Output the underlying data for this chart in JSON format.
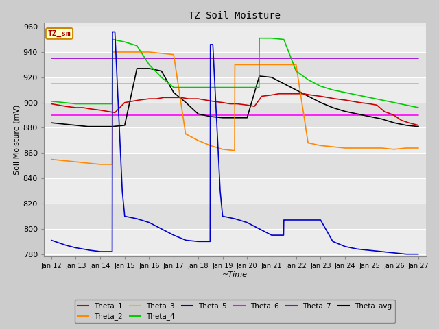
{
  "title": "TZ Soil Moisture",
  "xlabel": "~Time",
  "ylabel": "Soil Moisture (mV)",
  "ylim": [
    778,
    963
  ],
  "bg_color": "#cccccc",
  "plot_bg_light": "#e8e8e8",
  "plot_bg_dark": "#d8d8d8",
  "label_box_text": "TZ_sm",
  "label_box_color": "#ffffcc",
  "label_box_text_color": "#aa0000",
  "x_tick_labels": [
    "Jan 12",
    "Jan 13",
    "Jan 14",
    "Jan 15",
    "Jan 16",
    "Jan 17",
    "Jan 18",
    "Jan 19",
    "Jan 20",
    "Jan 21",
    "Jan 22",
    "Jan 23",
    "Jan 24",
    "Jan 25",
    "Jan 26",
    "Jan 27"
  ],
  "legend_entries": [
    {
      "label": "Theta_1",
      "color": "#cc0000"
    },
    {
      "label": "Theta_2",
      "color": "#ff8800"
    },
    {
      "label": "Theta_3",
      "color": "#cccc00"
    },
    {
      "label": "Theta_4",
      "color": "#00cc00"
    },
    {
      "label": "Theta_5",
      "color": "#0000cc"
    },
    {
      "label": "Theta_6",
      "color": "#ff00ff"
    },
    {
      "label": "Theta_7",
      "color": "#9900cc"
    },
    {
      "label": "Theta_avg",
      "color": "#000000"
    }
  ],
  "series": {
    "Theta_1": {
      "color": "#cc0000",
      "x": [
        0,
        0.3,
        0.6,
        1.0,
        1.3,
        1.6,
        2.0,
        2.3,
        2.6,
        3.0,
        3.3,
        3.6,
        4.0,
        4.3,
        4.6,
        5.0,
        5.3,
        5.6,
        6.0,
        6.3,
        6.6,
        7.0,
        7.3,
        7.6,
        8.0,
        8.3,
        8.6,
        9.0,
        9.3,
        9.6,
        10.0,
        10.3,
        10.6,
        11.0,
        11.3,
        11.6,
        12.0,
        12.3,
        12.6,
        13.0,
        13.3,
        13.6,
        14.0,
        14.3,
        14.6,
        15.0
      ],
      "y": [
        899,
        898,
        897,
        896,
        896,
        895,
        894,
        893,
        892,
        900,
        901,
        902,
        903,
        903,
        904,
        904,
        904,
        903,
        903,
        902,
        901,
        900,
        899,
        899,
        898,
        897,
        905,
        906,
        907,
        907,
        907,
        907,
        906,
        905,
        904,
        903,
        902,
        901,
        900,
        899,
        898,
        893,
        890,
        886,
        884,
        882
      ]
    },
    "Theta_2": {
      "color": "#ff8800",
      "x": [
        0,
        0.5,
        1.0,
        1.5,
        2.0,
        2.49,
        2.5,
        2.51,
        3.0,
        3.5,
        4.0,
        4.5,
        5.0,
        5.49,
        5.5,
        5.51,
        6.0,
        6.5,
        7.0,
        7.49,
        7.5,
        7.51,
        8.0,
        8.5,
        9.0,
        9.5,
        10.0,
        10.49,
        10.5,
        10.51,
        11.0,
        11.5,
        12.0,
        12.5,
        13.0,
        13.5,
        14.0,
        14.5,
        15.0
      ],
      "y": [
        855,
        854,
        853,
        852,
        851,
        851,
        940,
        940,
        940,
        940,
        940,
        939,
        938,
        875,
        875,
        875,
        870,
        866,
        863,
        862,
        930,
        930,
        930,
        930,
        930,
        930,
        930,
        868,
        868,
        868,
        866,
        865,
        864,
        864,
        864,
        864,
        863,
        864,
        864
      ]
    },
    "Theta_3": {
      "color": "#cccc00",
      "x": [
        0,
        15.0
      ],
      "y": [
        915,
        915
      ]
    },
    "Theta_4": {
      "color": "#00cc00",
      "x": [
        0,
        0.5,
        1.0,
        1.5,
        2.0,
        2.49,
        2.5,
        2.51,
        3.0,
        3.5,
        4.0,
        4.5,
        5.0,
        5.5,
        6.0,
        6.5,
        7.0,
        7.5,
        8.0,
        8.49,
        8.5,
        8.51,
        9.0,
        9.5,
        10.0,
        10.5,
        11.0,
        11.5,
        12.0,
        12.5,
        13.0,
        13.5,
        14.0,
        14.5,
        15.0
      ],
      "y": [
        901,
        900,
        899,
        899,
        899,
        899,
        950,
        950,
        948,
        945,
        930,
        920,
        912,
        912,
        912,
        912,
        912,
        912,
        912,
        912,
        951,
        951,
        951,
        950,
        925,
        918,
        913,
        910,
        908,
        906,
        904,
        902,
        900,
        898,
        896
      ]
    },
    "Theta_5": {
      "color": "#0000cc",
      "x": [
        0,
        0.3,
        0.6,
        1.0,
        1.3,
        1.6,
        2.0,
        2.3,
        2.49,
        2.5,
        2.51,
        2.6,
        2.9,
        3.0,
        3.5,
        4.0,
        4.5,
        5.0,
        5.5,
        6.0,
        6.49,
        6.5,
        6.51,
        6.6,
        6.9,
        7.0,
        7.5,
        8.0,
        8.5,
        9.0,
        9.49,
        9.5,
        9.51,
        9.6,
        9.9,
        10.0,
        10.5,
        11.0,
        11.5,
        12.0,
        12.5,
        13.0,
        13.5,
        14.0,
        14.5,
        15.0
      ],
      "y": [
        791,
        789,
        787,
        785,
        784,
        783,
        782,
        782,
        782,
        956,
        956,
        956,
        830,
        810,
        808,
        805,
        800,
        795,
        791,
        790,
        790,
        946,
        946,
        946,
        830,
        810,
        808,
        805,
        800,
        795,
        795,
        807,
        807,
        807,
        807,
        807,
        807,
        807,
        790,
        786,
        784,
        783,
        782,
        781,
        780,
        780
      ]
    },
    "Theta_6": {
      "color": "#ff00ff",
      "x": [
        0,
        15.0
      ],
      "y": [
        890,
        890
      ]
    },
    "Theta_7": {
      "color": "#9900cc",
      "x": [
        0,
        15.0
      ],
      "y": [
        935,
        935
      ]
    },
    "Theta_avg": {
      "color": "#000000",
      "x": [
        0,
        0.5,
        1.0,
        1.5,
        2.0,
        2.5,
        3.0,
        3.5,
        4.0,
        4.5,
        5.0,
        5.5,
        6.0,
        6.5,
        7.0,
        7.5,
        8.0,
        8.5,
        9.0,
        9.5,
        10.0,
        10.5,
        11.0,
        11.5,
        12.0,
        12.5,
        13.0,
        13.5,
        14.0,
        14.5,
        15.0
      ],
      "y": [
        884,
        883,
        882,
        881,
        881,
        881,
        882,
        927,
        927,
        925,
        908,
        900,
        891,
        889,
        888,
        888,
        888,
        921,
        920,
        915,
        910,
        905,
        900,
        896,
        893,
        891,
        889,
        887,
        884,
        882,
        881
      ]
    }
  }
}
